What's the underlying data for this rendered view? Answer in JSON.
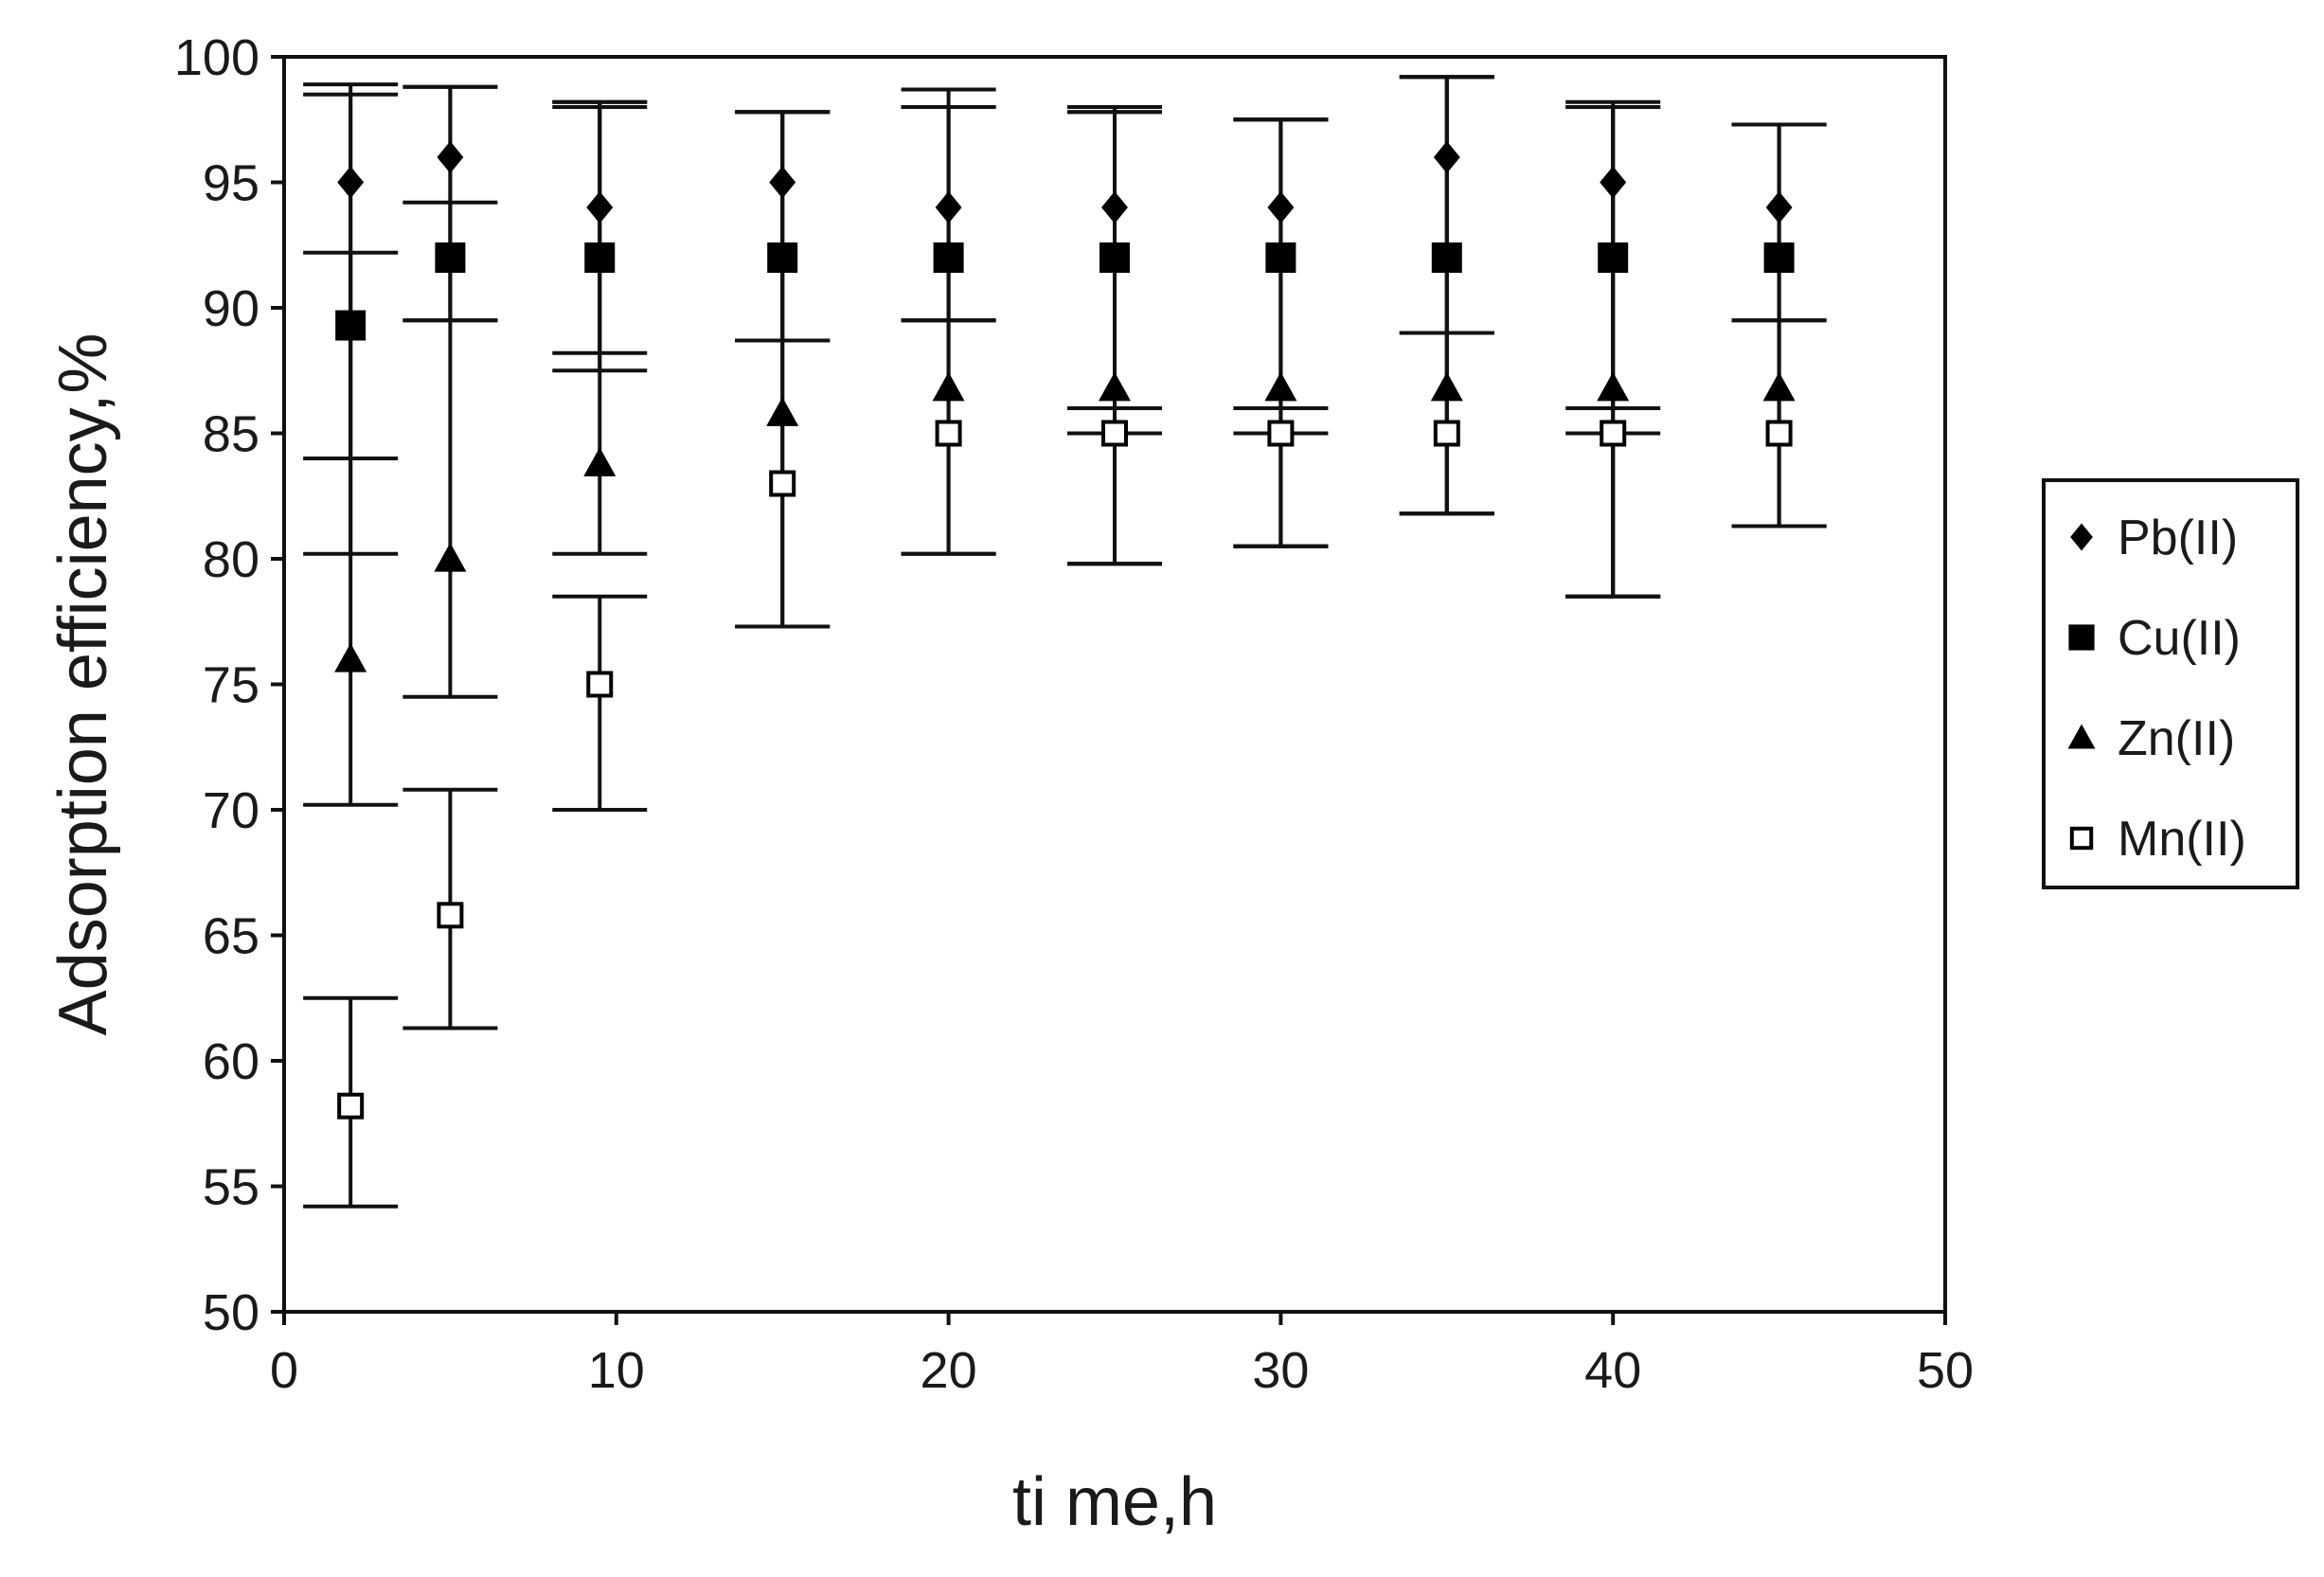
{
  "chart_data": {
    "type": "scatter",
    "title": "",
    "xlabel": "ti me,h",
    "ylabel": "Adsorption efficiency,%",
    "xlim": [
      0,
      50
    ],
    "ylim": [
      50,
      100
    ],
    "xticks": [
      0,
      10,
      20,
      30,
      40,
      50
    ],
    "yticks": [
      50,
      55,
      60,
      65,
      70,
      75,
      80,
      85,
      90,
      95,
      100
    ],
    "grid": false,
    "legend_position": "right",
    "error_bars": true,
    "series": [
      {
        "name": "Pb(II)",
        "marker": "diamond-filled",
        "color": "#000000",
        "x": [
          2,
          5,
          9.5,
          15,
          20,
          25,
          30,
          35,
          40,
          45
        ],
        "y": [
          95,
          96,
          94,
          95,
          94,
          94,
          94,
          96,
          95,
          94
        ],
        "err_low": [
          84,
          89.5,
          87.5,
          88.7,
          89.5,
          79.8,
          80.5,
          81.8,
          78.5,
          81.3
        ],
        "err_high": [
          98.5,
          98.8,
          98.2,
          97.8,
          98,
          97.8,
          97.5,
          99.2,
          98.2,
          97.3
        ]
      },
      {
        "name": "Cu(II)",
        "marker": "square-filled",
        "color": "#000000",
        "x": [
          2,
          5,
          9.5,
          15,
          20,
          25,
          30,
          35,
          40,
          45
        ],
        "y": [
          89.3,
          92,
          92,
          92,
          92,
          92,
          92,
          92,
          92,
          92
        ],
        "err_low": [
          80.2,
          89.5,
          88.2,
          88.7,
          89.5,
          86,
          86,
          89,
          86,
          89.5
        ],
        "err_high": [
          98.9,
          98.8,
          98.2,
          97.8,
          98.7,
          98,
          97.5,
          99.2,
          98,
          97.3
        ]
      },
      {
        "name": "Zn(II)",
        "marker": "triangle-filled",
        "color": "#000000",
        "x": [
          2,
          5,
          9.5,
          15,
          20,
          25,
          30,
          35,
          40,
          45
        ],
        "y": [
          76,
          80,
          83.8,
          85.8,
          86.8,
          86.8,
          86.8,
          86.8,
          86.8,
          86.8
        ],
        "err_low": [
          70.2,
          74.5,
          80.2,
          77.3,
          80.2,
          79.8,
          80.5,
          81.8,
          78.5,
          81.3
        ],
        "err_high": [
          92.2,
          94.2,
          98,
          97.8,
          98,
          97.8,
          97.5,
          99.2,
          98,
          97.3
        ]
      },
      {
        "name": "Mn(II)",
        "marker": "square-open",
        "color": "#000000",
        "x": [
          2,
          5,
          9.5,
          15,
          20,
          25,
          30,
          35,
          40,
          45
        ],
        "y": [
          58.2,
          65.8,
          75,
          83,
          85,
          85,
          85,
          85,
          85,
          85
        ],
        "err_low": [
          54.2,
          61.3,
          70,
          77.3,
          80.2,
          79.8,
          80.5,
          81.8,
          78.5,
          81.3
        ],
        "err_high": [
          62.5,
          70.8,
          78.5,
          88.7,
          89.5,
          85,
          85,
          89,
          85,
          89.5
        ]
      }
    ]
  }
}
